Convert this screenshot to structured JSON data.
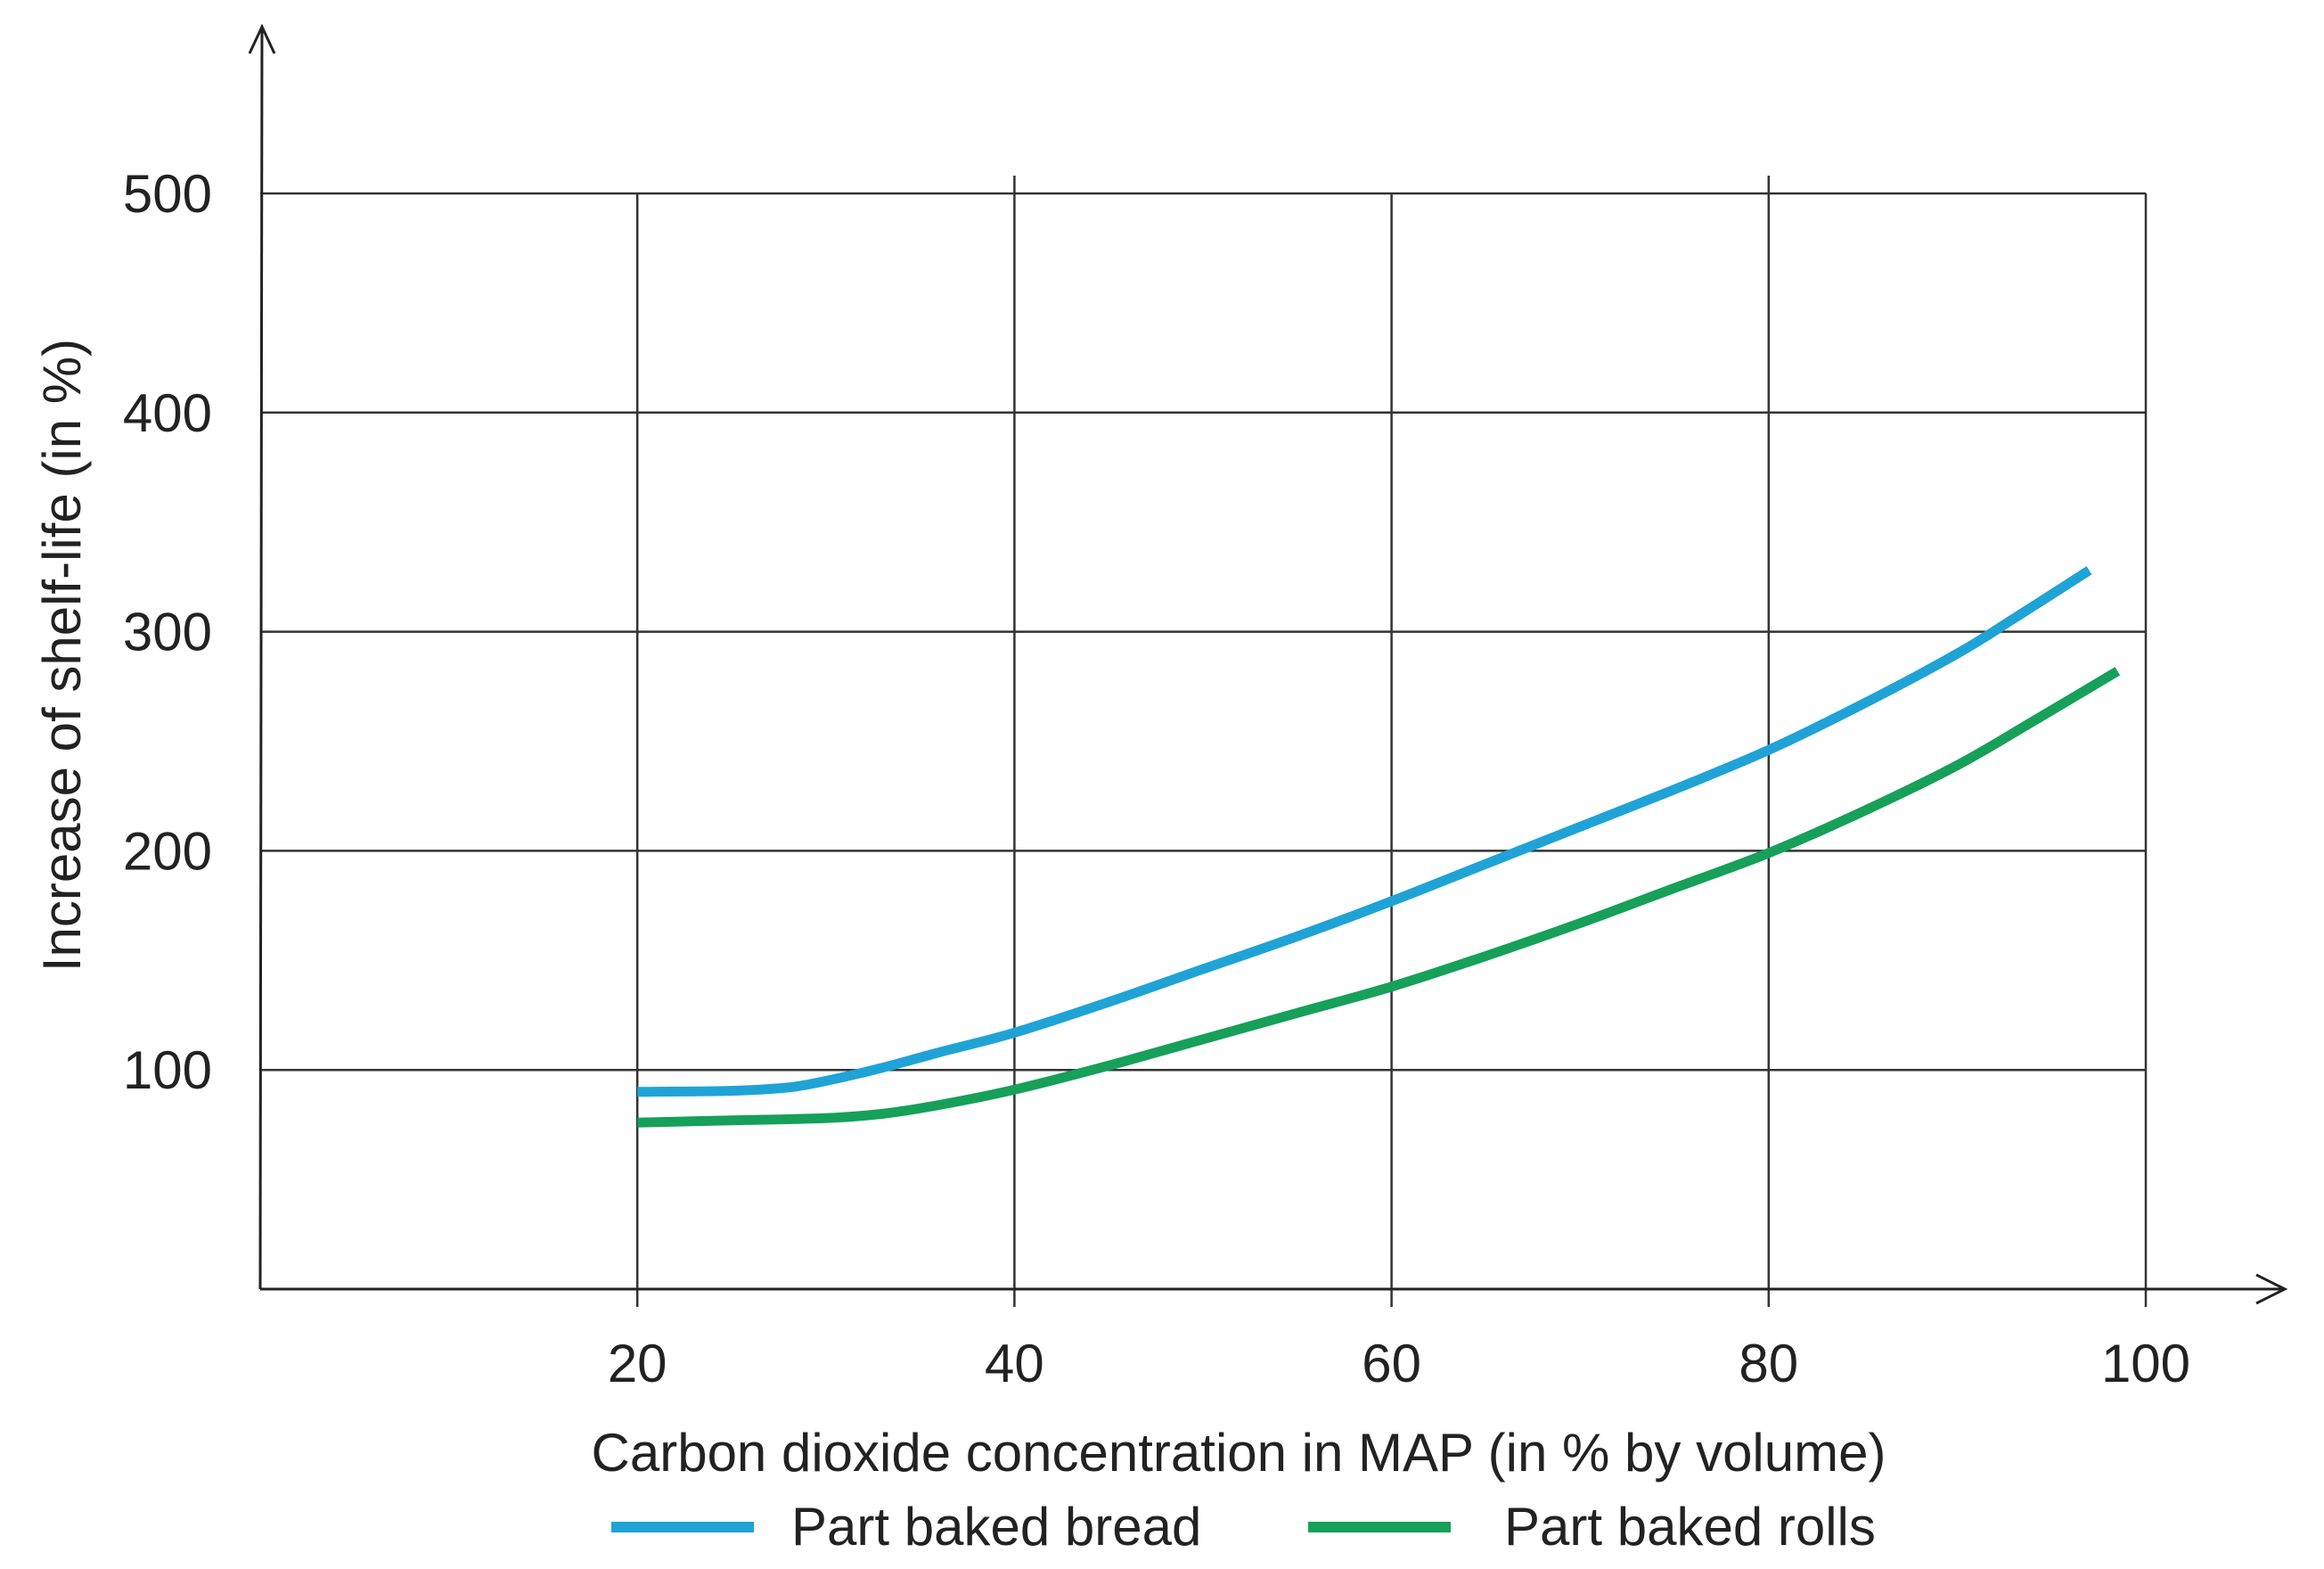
{
  "chart_data": {
    "type": "line",
    "title": "",
    "xlabel": "Carbon dioxide concentration in MAP (in % by volume)",
    "ylabel": "Increase of shelf-life (in %)",
    "xlim": [
      0,
      100
    ],
    "ylim": [
      0,
      500
    ],
    "x_ticks": [
      20,
      40,
      60,
      80,
      100
    ],
    "y_ticks": [
      100,
      200,
      300,
      400,
      500
    ],
    "grid": true,
    "legend_position": "bottom",
    "series": [
      {
        "name": "Part baked bread",
        "color": "#1FA3D6",
        "points": [
          [
            20,
            90
          ],
          [
            25,
            90.5
          ],
          [
            28,
            92
          ],
          [
            30,
            95
          ],
          [
            33,
            101
          ],
          [
            36,
            108
          ],
          [
            40,
            117
          ],
          [
            45,
            131
          ],
          [
            50,
            146
          ],
          [
            55,
            161
          ],
          [
            60,
            177
          ],
          [
            65,
            194
          ],
          [
            70,
            211
          ],
          [
            75,
            228
          ],
          [
            80,
            246
          ],
          [
            85,
            267
          ],
          [
            90,
            290
          ],
          [
            93,
            306
          ],
          [
            97,
            328
          ]
        ]
      },
      {
        "name": "Part baked rolls",
        "color": "#16A05A",
        "points": [
          [
            20,
            76
          ],
          [
            25,
            77
          ],
          [
            30,
            78
          ],
          [
            33,
            80
          ],
          [
            36,
            84
          ],
          [
            40,
            91
          ],
          [
            45,
            102
          ],
          [
            50,
            114
          ],
          [
            55,
            126
          ],
          [
            60,
            138
          ],
          [
            65,
            152
          ],
          [
            70,
            167
          ],
          [
            75,
            183
          ],
          [
            80,
            199
          ],
          [
            85,
            218
          ],
          [
            90,
            239
          ],
          [
            94,
            259
          ],
          [
            98.5,
            282
          ]
        ]
      }
    ]
  }
}
